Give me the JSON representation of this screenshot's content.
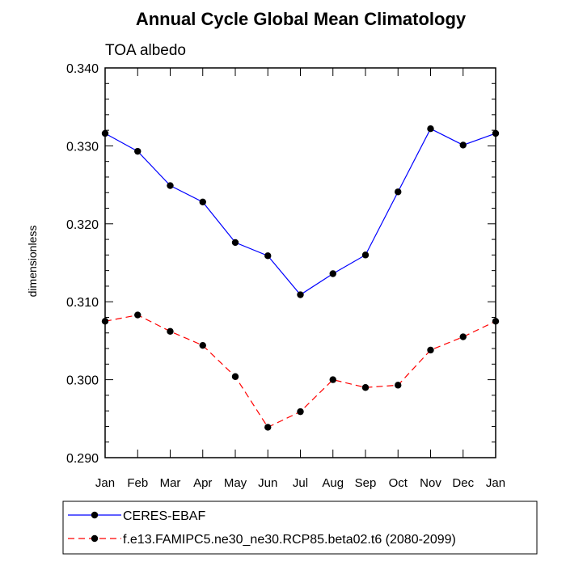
{
  "chart_data": {
    "type": "line",
    "title": "Annual Cycle Global Mean Climatology",
    "subtitle": "TOA albedo",
    "xlabel": "",
    "ylabel": "dimensionless",
    "categories": [
      "Jan",
      "Feb",
      "Mar",
      "Apr",
      "May",
      "Jun",
      "Jul",
      "Aug",
      "Sep",
      "Oct",
      "Nov",
      "Dec",
      "Jan"
    ],
    "yticks": [
      "0.290",
      "0.300",
      "0.310",
      "0.320",
      "0.330",
      "0.340"
    ],
    "ylim": [
      0.29,
      0.34
    ],
    "grid": false,
    "legend_position": "bottom",
    "series": [
      {
        "name": "CERES-EBAF",
        "color": "#0000ff",
        "line_style": "solid",
        "marker": "filled-circle",
        "values": [
          0.3316,
          0.3293,
          0.3249,
          0.3228,
          0.3176,
          0.3159,
          0.3109,
          0.3136,
          0.316,
          0.3241,
          0.3322,
          0.3301,
          0.3316
        ]
      },
      {
        "name": "f.e13.FAMIPC5.ne30_ne30.RCP85.beta02.t6 (2080-2099)",
        "color": "#ff0000",
        "line_style": "dashed",
        "marker": "filled-circle",
        "values": [
          0.3075,
          0.3083,
          0.3062,
          0.3044,
          0.3004,
          0.2939,
          0.2959,
          0.3,
          0.299,
          0.2993,
          0.3038,
          0.3055,
          0.3075
        ]
      }
    ]
  }
}
